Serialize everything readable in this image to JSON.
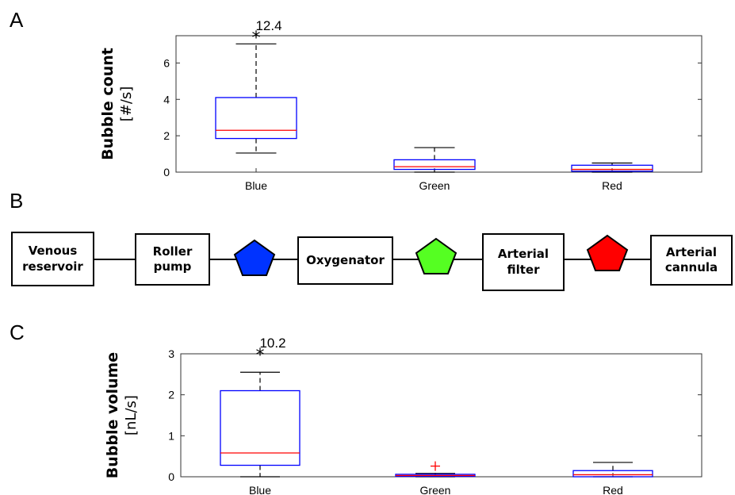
{
  "panels": {
    "a": "A",
    "b": "B",
    "c": "C"
  },
  "chart_data": [
    {
      "type": "box",
      "ylabel": "Bubble count",
      "yunit": "[#/s]",
      "ylim": [
        0,
        7.5
      ],
      "yticks": [
        0,
        2,
        4,
        6
      ],
      "categories": [
        "Blue",
        "Green",
        "Red"
      ],
      "boxes": [
        {
          "q1": 1.85,
          "median": 2.3,
          "q3": 4.1,
          "wlow": 1.05,
          "whigh": 7.05,
          "outliers": [
            {
              "value": 7.45,
              "marker": "*",
              "label": "12.4"
            }
          ]
        },
        {
          "q1": 0.15,
          "median": 0.3,
          "q3": 0.68,
          "wlow": 0.0,
          "whigh": 1.35,
          "outliers": []
        },
        {
          "q1": 0.05,
          "median": 0.15,
          "q3": 0.38,
          "wlow": 0.0,
          "whigh": 0.5,
          "outliers": []
        }
      ]
    },
    {
      "type": "box",
      "ylabel": "Bubble volume",
      "yunit": "[nL/s]",
      "ylim": [
        0,
        3
      ],
      "yticks": [
        0,
        1,
        2,
        3
      ],
      "categories": [
        "Blue",
        "Green",
        "Red"
      ],
      "boxes": [
        {
          "q1": 0.28,
          "median": 0.58,
          "q3": 2.1,
          "wlow": 0.0,
          "whigh": 2.55,
          "outliers": [
            {
              "value": 3.0,
              "marker": "*",
              "label": "10.2"
            }
          ]
        },
        {
          "q1": 0.01,
          "median": 0.03,
          "q3": 0.06,
          "wlow": 0.0,
          "whigh": 0.08,
          "outliers": [
            {
              "value": 0.26,
              "marker": "+",
              "label": ""
            }
          ]
        },
        {
          "q1": 0.0,
          "median": 0.05,
          "q3": 0.15,
          "wlow": 0.0,
          "whigh": 0.35,
          "outliers": []
        }
      ]
    }
  ],
  "diagram": {
    "nodes": [
      "Venous\nreservoir",
      "Roller\npump",
      "Oxygenator",
      "Arterial\nfilter",
      "Arterial\ncannula"
    ],
    "markers": [
      {
        "name": "blue",
        "color": "#0033ff"
      },
      {
        "name": "green",
        "color": "#55ff22"
      },
      {
        "name": "red",
        "color": "#ff0000"
      }
    ]
  },
  "colors": {
    "box": "#0000ff",
    "median": "#ff0000",
    "whisker": "#000000",
    "outlier_plus": "#ff0000"
  }
}
